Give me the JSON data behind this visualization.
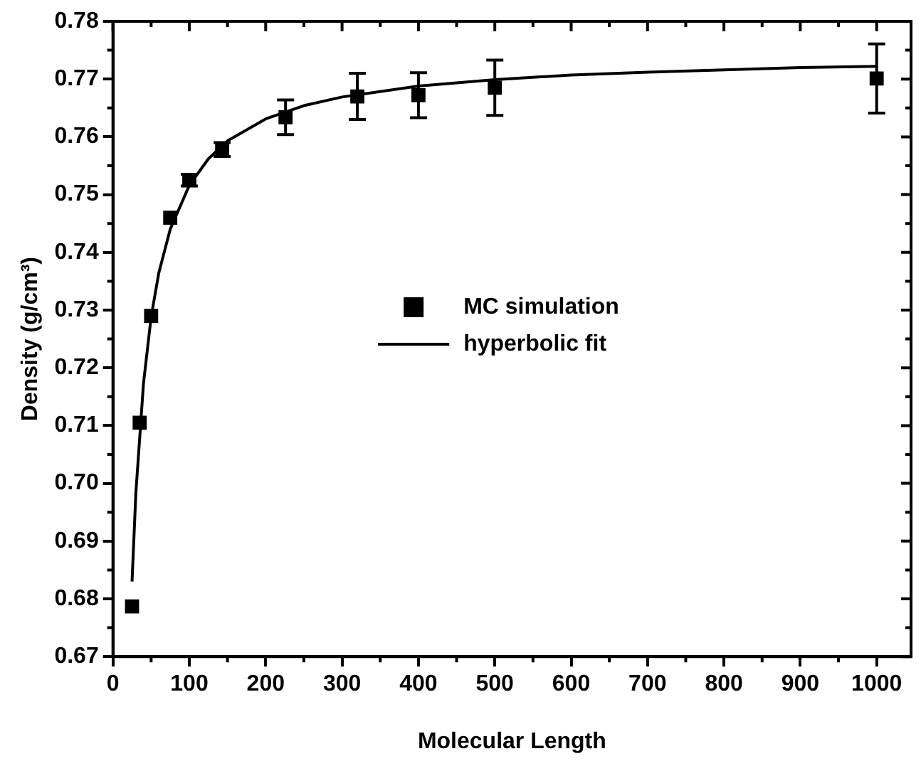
{
  "chart_data": {
    "type": "scatter",
    "xlabel": "Molecular Length",
    "ylabel": "Density (g/cm³)",
    "xlim": [
      0,
      1045
    ],
    "xticks": [
      0,
      100,
      200,
      300,
      400,
      500,
      600,
      700,
      800,
      900,
      1000
    ],
    "ylim": [
      0.67,
      0.78
    ],
    "yticks": [
      0.67,
      0.68,
      0.69,
      {
        "value": 0.7,
        "label": "0.70"
      },
      0.71,
      0.72,
      0.73,
      0.74,
      0.75,
      0.76,
      0.77,
      0.78
    ],
    "grid": false,
    "legend": "center",
    "marker": "square",
    "series": [
      {
        "name": "MC simulation",
        "color": "#000000",
        "x": [
          25,
          35,
          50,
          75,
          100,
          143,
          226,
          320,
          400,
          500,
          1000
        ],
        "values": [
          0.6787,
          0.7105,
          0.729,
          0.746,
          0.7525,
          0.7578,
          0.7634,
          0.767,
          0.7672,
          0.7685,
          0.7701
        ],
        "errors": [
          null,
          null,
          null,
          null,
          0.001,
          0.0012,
          0.003,
          0.004,
          0.0039,
          0.0048,
          0.006
        ]
      },
      {
        "name": "hyperbolic fit",
        "type": "line",
        "color": "#000000",
        "marker": "none",
        "line_style": "solid",
        "x": [
          25,
          30,
          40,
          50,
          60,
          75,
          100,
          125,
          150,
          200,
          250,
          300,
          400,
          500,
          600,
          700,
          800,
          900,
          1000
        ],
        "values": [
          0.683,
          0.6983,
          0.7173,
          0.7288,
          0.7364,
          0.744,
          0.7516,
          0.7562,
          0.7593,
          0.7631,
          0.7654,
          0.7669,
          0.7688,
          0.7699,
          0.7707,
          0.7712,
          0.7716,
          0.772,
          0.7722
        ]
      }
    ]
  }
}
